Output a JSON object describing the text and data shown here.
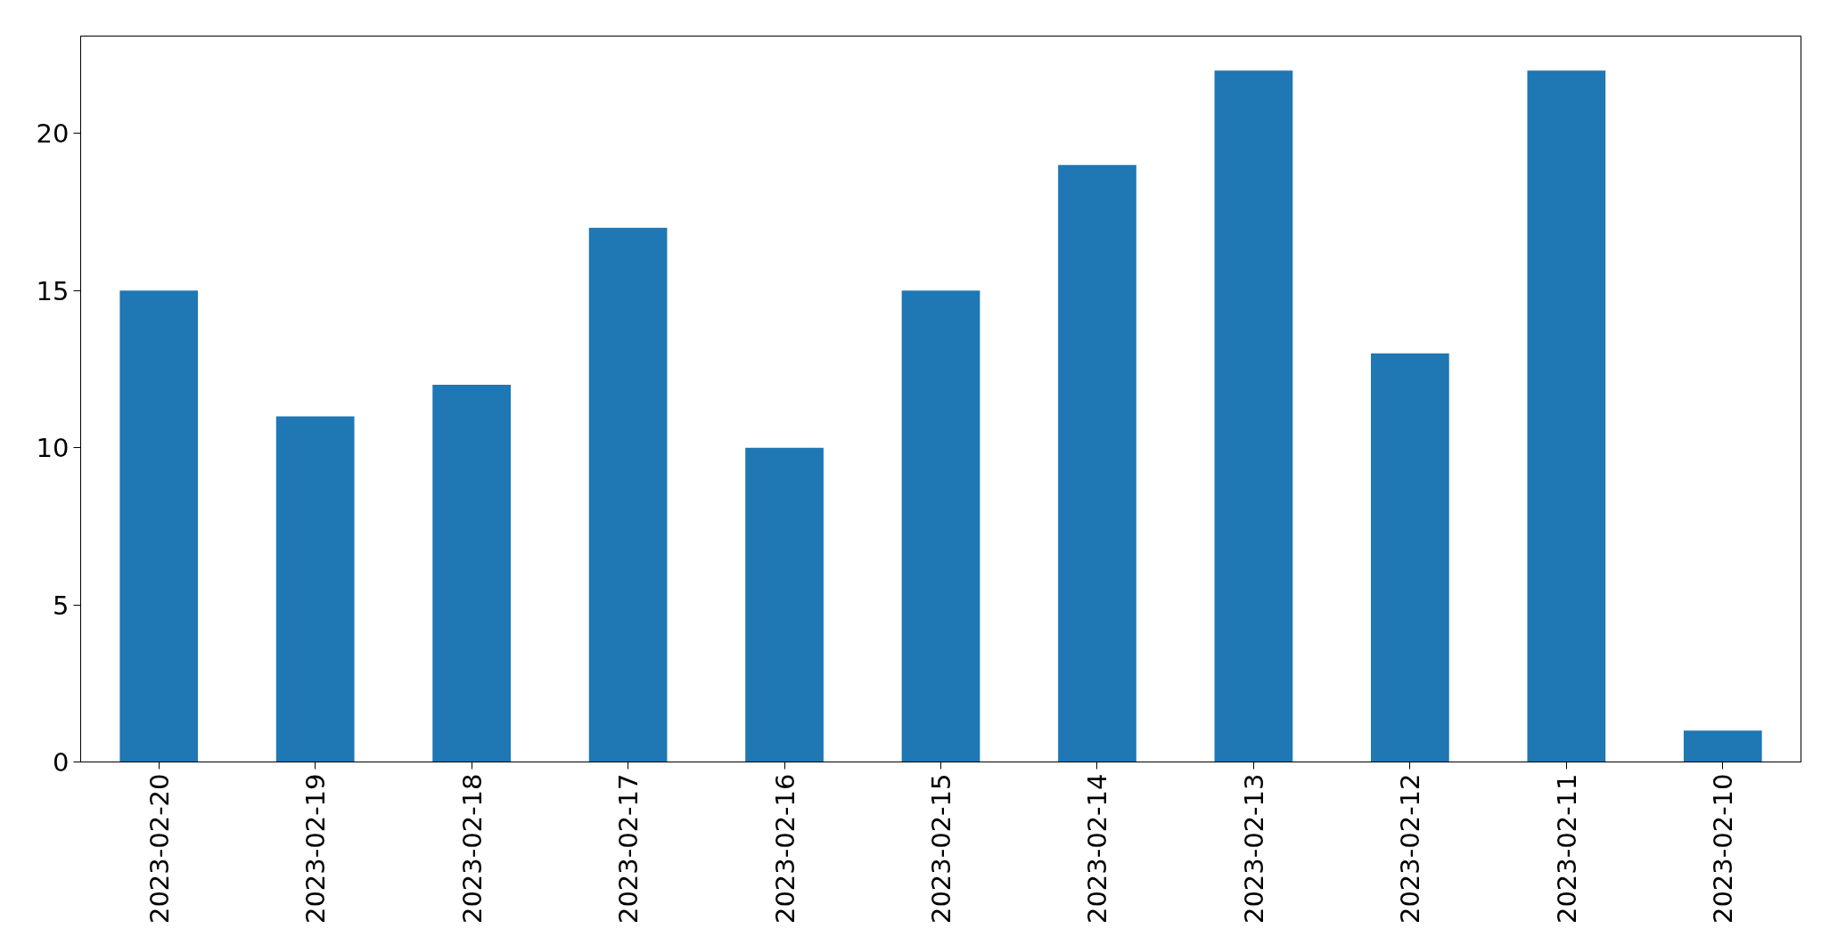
{
  "chart_data": {
    "type": "bar",
    "categories": [
      "2023-02-20",
      "2023-02-19",
      "2023-02-18",
      "2023-02-17",
      "2023-02-16",
      "2023-02-15",
      "2023-02-14",
      "2023-02-13",
      "2023-02-12",
      "2023-02-11",
      "2023-02-10"
    ],
    "values": [
      15,
      11,
      12,
      17,
      10,
      15,
      19,
      22,
      13,
      22,
      1
    ],
    "color": "#1f77b4",
    "ylim": [
      0,
      23.1
    ],
    "yticks": [
      0,
      5,
      10,
      15,
      20
    ]
  }
}
